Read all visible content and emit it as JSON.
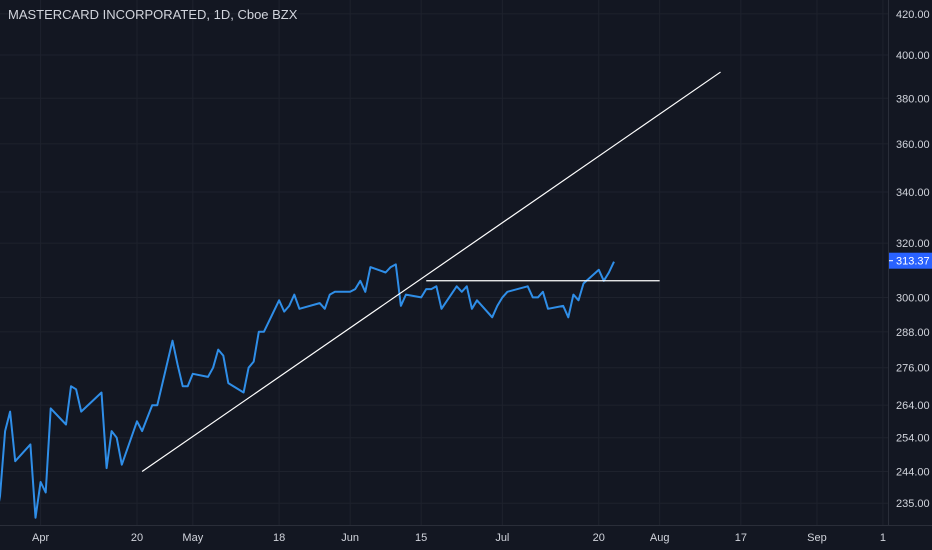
{
  "header": {
    "title": "MASTERCARD INCORPORATED, 1D, Cboe BZX"
  },
  "colors": {
    "background": "#131722",
    "grid": "#1e222d",
    "series": "#2f8ee8",
    "drawing": "#ffffff",
    "price_tag": "#2962ff",
    "text": "#d1d4dc"
  },
  "chart_data": {
    "type": "line",
    "title": "MASTERCARD INCORPORATED, 1D, Cboe BZX",
    "xlabel": "",
    "ylabel": "",
    "ylim": [
      229,
      427
    ],
    "y_scale": "log",
    "y_ticks": [
      {
        "value": 420,
        "label": "420.00"
      },
      {
        "value": 400,
        "label": "400.00"
      },
      {
        "value": 380,
        "label": "380.00"
      },
      {
        "value": 360,
        "label": "360.00"
      },
      {
        "value": 340,
        "label": "340.00"
      },
      {
        "value": 320,
        "label": "320.00"
      },
      {
        "value": 300,
        "label": "300.00"
      },
      {
        "value": 288,
        "label": "288.00"
      },
      {
        "value": 276,
        "label": "276.00"
      },
      {
        "value": 264,
        "label": "264.00"
      },
      {
        "value": 254,
        "label": "254.00"
      },
      {
        "value": 244,
        "label": "244.00"
      },
      {
        "value": 235,
        "label": "235.00"
      }
    ],
    "x_ticks": [
      {
        "date": "2020-04-01",
        "label": "Apr"
      },
      {
        "date": "2020-04-20",
        "label": "20"
      },
      {
        "date": "2020-05-01",
        "label": "May"
      },
      {
        "date": "2020-05-18",
        "label": "18"
      },
      {
        "date": "2020-06-01",
        "label": "Jun"
      },
      {
        "date": "2020-06-15",
        "label": "15"
      },
      {
        "date": "2020-07-01",
        "label": "Jul"
      },
      {
        "date": "2020-07-20",
        "label": "20"
      },
      {
        "date": "2020-08-01",
        "label": "Aug"
      },
      {
        "date": "2020-08-17",
        "label": "17"
      },
      {
        "date": "2020-09-01",
        "label": "Sep"
      },
      {
        "date": "2020-09-14",
        "label": "1"
      }
    ],
    "xlim": [
      "2020-03-24",
      "2020-09-15"
    ],
    "series": [
      {
        "x": [
          "2020-03-23",
          "2020-03-24",
          "2020-03-25",
          "2020-03-26",
          "2020-03-27",
          "2020-03-30",
          "2020-03-31",
          "2020-04-01",
          "2020-04-02",
          "2020-04-03",
          "2020-04-06",
          "2020-04-07",
          "2020-04-08",
          "2020-04-09",
          "2020-04-13",
          "2020-04-14",
          "2020-04-15",
          "2020-04-16",
          "2020-04-17",
          "2020-04-20",
          "2020-04-21",
          "2020-04-22",
          "2020-04-23",
          "2020-04-24",
          "2020-04-27",
          "2020-04-28",
          "2020-04-29",
          "2020-04-30",
          "2020-05-01",
          "2020-05-04",
          "2020-05-05",
          "2020-05-06",
          "2020-05-07",
          "2020-05-08",
          "2020-05-11",
          "2020-05-12",
          "2020-05-13",
          "2020-05-14",
          "2020-05-15",
          "2020-05-18",
          "2020-05-19",
          "2020-05-20",
          "2020-05-21",
          "2020-05-22",
          "2020-05-26",
          "2020-05-27",
          "2020-05-28",
          "2020-05-29",
          "2020-06-01",
          "2020-06-02",
          "2020-06-03",
          "2020-06-04",
          "2020-06-05",
          "2020-06-08",
          "2020-06-09",
          "2020-06-10",
          "2020-06-11",
          "2020-06-12",
          "2020-06-15",
          "2020-06-16",
          "2020-06-17",
          "2020-06-18",
          "2020-06-19",
          "2020-06-22",
          "2020-06-23",
          "2020-06-24",
          "2020-06-25",
          "2020-06-26",
          "2020-06-29",
          "2020-06-30",
          "2020-07-01",
          "2020-07-02",
          "2020-07-06",
          "2020-07-07",
          "2020-07-08",
          "2020-07-09",
          "2020-07-10",
          "2020-07-13",
          "2020-07-14",
          "2020-07-15",
          "2020-07-16",
          "2020-07-17",
          "2020-07-20",
          "2020-07-21",
          "2020-07-22",
          "2020-07-23"
        ],
        "values": [
          229,
          237,
          256,
          262,
          247,
          252,
          231,
          241,
          238,
          263,
          258,
          270,
          269,
          262,
          268,
          245,
          256,
          254,
          246,
          259,
          256,
          260,
          264,
          264,
          285,
          277,
          270,
          270,
          274,
          273,
          276,
          282,
          280,
          271,
          268,
          276,
          278,
          288,
          288,
          299,
          295,
          297,
          301,
          296,
          298,
          296,
          301,
          302,
          302,
          303,
          306,
          302,
          311,
          309,
          311,
          312,
          297,
          301,
          300,
          303,
          303,
          304,
          296,
          304,
          302,
          304,
          296,
          299,
          293,
          297,
          300,
          302,
          304,
          300,
          300,
          302,
          296,
          297,
          293,
          301,
          299,
          305,
          310,
          306,
          309,
          313
        ]
      }
    ],
    "drawings": [
      {
        "type": "trendline",
        "from": {
          "date": "2020-04-21",
          "value": 244
        },
        "to": {
          "date": "2020-08-13",
          "value": 392
        }
      },
      {
        "type": "horizontal_segment",
        "from": {
          "date": "2020-06-16",
          "value": 306
        },
        "to": {
          "date": "2020-08-01",
          "value": 306
        }
      }
    ],
    "last_price": {
      "value": 313.37,
      "label": "313.37"
    },
    "grid": true,
    "legend": "none"
  }
}
